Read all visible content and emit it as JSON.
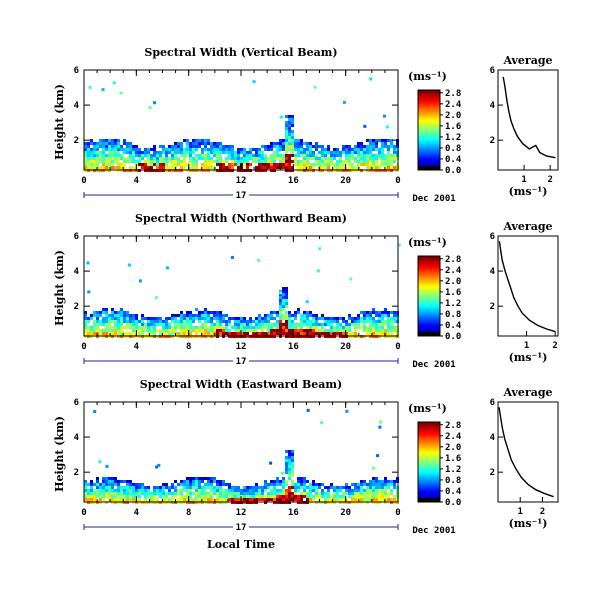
{
  "figure": {
    "xlabel": "Local Time",
    "date_label": "Dec 2001",
    "day_label": "17",
    "colorbar_unit": "(ms⁻¹)",
    "avg_xlabel": "(ms⁻¹)"
  },
  "chart_data": [
    {
      "type": "heatmap",
      "title": "Spectral Width (Vertical Beam)",
      "ylabel": "Height (km)",
      "xlim": [
        0,
        24
      ],
      "ylim": [
        0.3,
        6
      ],
      "xticks": [
        "0",
        "4",
        "8",
        "12",
        "16",
        "20",
        "0"
      ],
      "yticks": [
        "2",
        "4",
        "6"
      ],
      "colorbar_ticks": [
        "0.0",
        "0.4",
        "0.8",
        "1.2",
        "1.6",
        "2.0",
        "2.4",
        "2.8"
      ],
      "colorbar_range": [
        0,
        2.9
      ],
      "field": {
        "top_base_km": 1.75,
        "spike_hour": 15.5,
        "spike_top_km": 3.4,
        "hot_hours": [
          [
            4,
            6
          ],
          [
            10,
            16
          ]
        ],
        "max_value": 2.8
      },
      "average": {
        "title": "Average",
        "xlim": [
          0,
          2.3
        ],
        "ylim": [
          0.3,
          6
        ],
        "xticks": [
          "1",
          "2"
        ],
        "yticks": [
          "2",
          "4",
          "6"
        ],
        "profile": [
          [
            0.2,
            5.6
          ],
          [
            0.25,
            5.2
          ],
          [
            0.3,
            4.7
          ],
          [
            0.35,
            4.2
          ],
          [
            0.42,
            3.6
          ],
          [
            0.5,
            3.1
          ],
          [
            0.62,
            2.6
          ],
          [
            0.75,
            2.2
          ],
          [
            0.95,
            1.8
          ],
          [
            1.2,
            1.5
          ],
          [
            1.45,
            1.7
          ],
          [
            1.6,
            1.3
          ],
          [
            1.85,
            1.1
          ],
          [
            2.2,
            1.0
          ]
        ]
      }
    },
    {
      "type": "heatmap",
      "title": "Spectral Width (Northward Beam)",
      "ylabel": "Height (km)",
      "xlim": [
        0,
        24
      ],
      "ylim": [
        0.3,
        6
      ],
      "xticks": [
        "0",
        "4",
        "8",
        "12",
        "16",
        "20",
        "0"
      ],
      "yticks": [
        "2",
        "4",
        "6"
      ],
      "colorbar_ticks": [
        "0.0",
        "0.4",
        "0.8",
        "1.2",
        "1.6",
        "2.0",
        "2.4",
        "2.8"
      ],
      "colorbar_range": [
        0,
        2.9
      ],
      "field": {
        "top_base_km": 1.5,
        "spike_hour": 15.2,
        "spike_top_km": 3.0,
        "hot_hours": [
          [
            10,
            20
          ]
        ],
        "max_value": 2.8
      },
      "average": {
        "title": "Average",
        "xlim": [
          0,
          2.1
        ],
        "ylim": [
          0.3,
          6
        ],
        "xticks": [
          "1",
          "2"
        ],
        "yticks": [
          "2",
          "4",
          "6"
        ],
        "profile": [
          [
            0.05,
            5.7
          ],
          [
            0.1,
            5.1
          ],
          [
            0.15,
            4.6
          ],
          [
            0.25,
            4.0
          ],
          [
            0.35,
            3.5
          ],
          [
            0.45,
            3.0
          ],
          [
            0.55,
            2.5
          ],
          [
            0.7,
            2.0
          ],
          [
            0.85,
            1.6
          ],
          [
            1.1,
            1.2
          ],
          [
            1.4,
            0.9
          ],
          [
            1.7,
            0.7
          ],
          [
            2.0,
            0.55
          ]
        ]
      }
    },
    {
      "type": "heatmap",
      "title": "Spectral Width (Eastward Beam)",
      "ylabel": "Height (km)",
      "xlim": [
        0,
        24
      ],
      "ylim": [
        0.3,
        6
      ],
      "xticks": [
        "0",
        "4",
        "8",
        "12",
        "16",
        "20",
        "0"
      ],
      "yticks": [
        "2",
        "4",
        "6"
      ],
      "colorbar_ticks": [
        "0.0",
        "0.4",
        "0.8",
        "1.2",
        "1.6",
        "2.0",
        "2.4",
        "2.8"
      ],
      "colorbar_range": [
        0,
        2.9
      ],
      "field": {
        "top_base_km": 1.4,
        "spike_hour": 15.7,
        "spike_top_km": 3.2,
        "hot_hours": [
          [
            11,
            17
          ]
        ],
        "max_value": 2.8
      },
      "average": {
        "title": "Average",
        "xlim": [
          0,
          2.7
        ],
        "ylim": [
          0.3,
          6
        ],
        "xticks": [
          "1",
          "2"
        ],
        "yticks": [
          "2",
          "4",
          "6"
        ],
        "profile": [
          [
            0.05,
            5.7
          ],
          [
            0.12,
            5.1
          ],
          [
            0.2,
            4.5
          ],
          [
            0.3,
            3.9
          ],
          [
            0.45,
            3.3
          ],
          [
            0.6,
            2.7
          ],
          [
            0.8,
            2.2
          ],
          [
            1.05,
            1.7
          ],
          [
            1.35,
            1.3
          ],
          [
            1.7,
            1.0
          ],
          [
            2.05,
            0.8
          ],
          [
            2.5,
            0.6
          ]
        ]
      }
    }
  ],
  "colors": {
    "axis": "#000000",
    "rule": "#1a2a8a"
  }
}
